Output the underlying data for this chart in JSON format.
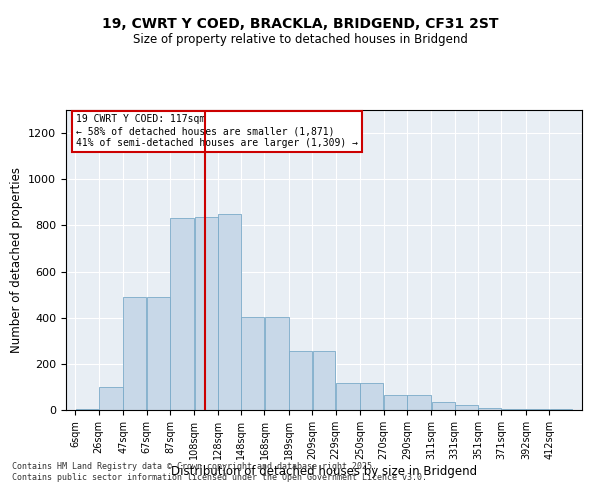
{
  "title_line1": "19, CWRT Y COED, BRACKLA, BRIDGEND, CF31 2ST",
  "title_line2": "Size of property relative to detached houses in Bridgend",
  "xlabel": "Distribution of detached houses by size in Bridgend",
  "ylabel": "Number of detached properties",
  "bar_color": "#c8d8e8",
  "bar_edge_color": "#7aaac8",
  "vline_color": "#cc0000",
  "vline_x": 117,
  "categories": [
    "6sqm",
    "26sqm",
    "47sqm",
    "67sqm",
    "87sqm",
    "108sqm",
    "128sqm",
    "148sqm",
    "168sqm",
    "189sqm",
    "209sqm",
    "229sqm",
    "250sqm",
    "270sqm",
    "290sqm",
    "311sqm",
    "331sqm",
    "351sqm",
    "371sqm",
    "392sqm",
    "412sqm"
  ],
  "bin_edges": [
    6,
    26,
    47,
    67,
    87,
    108,
    128,
    148,
    168,
    189,
    209,
    229,
    250,
    270,
    290,
    311,
    331,
    351,
    371,
    392,
    412
  ],
  "values": [
    5,
    100,
    490,
    490,
    830,
    835,
    850,
    405,
    405,
    255,
    255,
    115,
    115,
    65,
    65,
    35,
    20,
    10,
    5,
    5,
    3
  ],
  "ylim": [
    0,
    1300
  ],
  "yticks": [
    0,
    200,
    400,
    600,
    800,
    1000,
    1200
  ],
  "annotation_title": "19 CWRT Y COED: 117sqm",
  "annotation_line2": "← 58% of detached houses are smaller (1,871)",
  "annotation_line3": "41% of semi-detached houses are larger (1,309) →",
  "annotation_color": "#cc0000",
  "background_color": "#e8eef4",
  "footnote_line1": "Contains HM Land Registry data © Crown copyright and database right 2025.",
  "footnote_line2": "Contains public sector information licensed under the Open Government Licence v3.0."
}
